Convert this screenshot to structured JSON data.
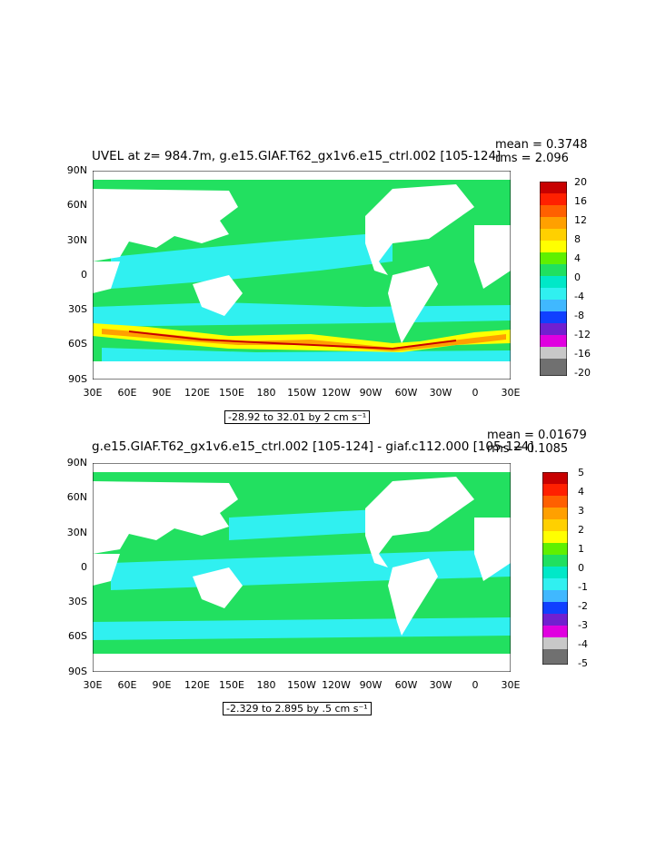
{
  "panels": [
    {
      "title": "UVEL at z= 984.7m, g.e15.GIAF.T62_gx1v6.e15_ctrl.002 [105-124]",
      "mean_label": "mean = 0.3748",
      "rms_label": "rms = 2.096",
      "range_label": "-28.92 to 32.01 by 2 cm s⁻¹",
      "colorbar_labels": [
        "20",
        "16",
        "12",
        "8",
        "4",
        "0",
        "-4",
        "-8",
        "-12",
        "-16",
        "-20"
      ],
      "colorbar_colors": [
        "#c80000",
        "#ff2000",
        "#ff6000",
        "#ffa000",
        "#ffd000",
        "#ffff00",
        "#60f000",
        "#20e060",
        "#00e8c8",
        "#30f0f0",
        "#40b8ff",
        "#1040ff",
        "#7020d0",
        "#e000e0",
        "#c8c8c8",
        "#707070"
      ]
    },
    {
      "title": "g.e15.GIAF.T62_gx1v6.e15_ctrl.002 [105-124] - giaf.c112.000 [105-124]",
      "mean_label": "mean = 0.01679",
      "rms_label": "rms = 0.1085",
      "range_label": "-2.329 to 2.895 by .5 cm s⁻¹",
      "colorbar_labels": [
        "5",
        "4",
        "3",
        "2",
        "1",
        "0",
        "-1",
        "-2",
        "-3",
        "-4",
        "-5"
      ],
      "colorbar_colors": [
        "#c80000",
        "#ff2000",
        "#ff6000",
        "#ffa000",
        "#ffd000",
        "#ffff00",
        "#60f000",
        "#20e060",
        "#00e8c8",
        "#30f0f0",
        "#40b8ff",
        "#1040ff",
        "#7020d0",
        "#e000e0",
        "#c8c8c8",
        "#707070"
      ]
    }
  ],
  "axes": {
    "lat_labels": [
      "90N",
      "60N",
      "30N",
      "0",
      "30S",
      "60S",
      "90S"
    ],
    "lon_labels": [
      "30E",
      "60E",
      "90E",
      "120E",
      "150E",
      "180",
      "150W",
      "120W",
      "90W",
      "60W",
      "30W",
      "0",
      "30E"
    ]
  },
  "colors": {
    "ocean_green": "#22e060",
    "ocean_cyan": "#30f0f0",
    "land": "#ffffff",
    "yellow": "#ffff00",
    "orange": "#ffa000",
    "red": "#c80000"
  }
}
